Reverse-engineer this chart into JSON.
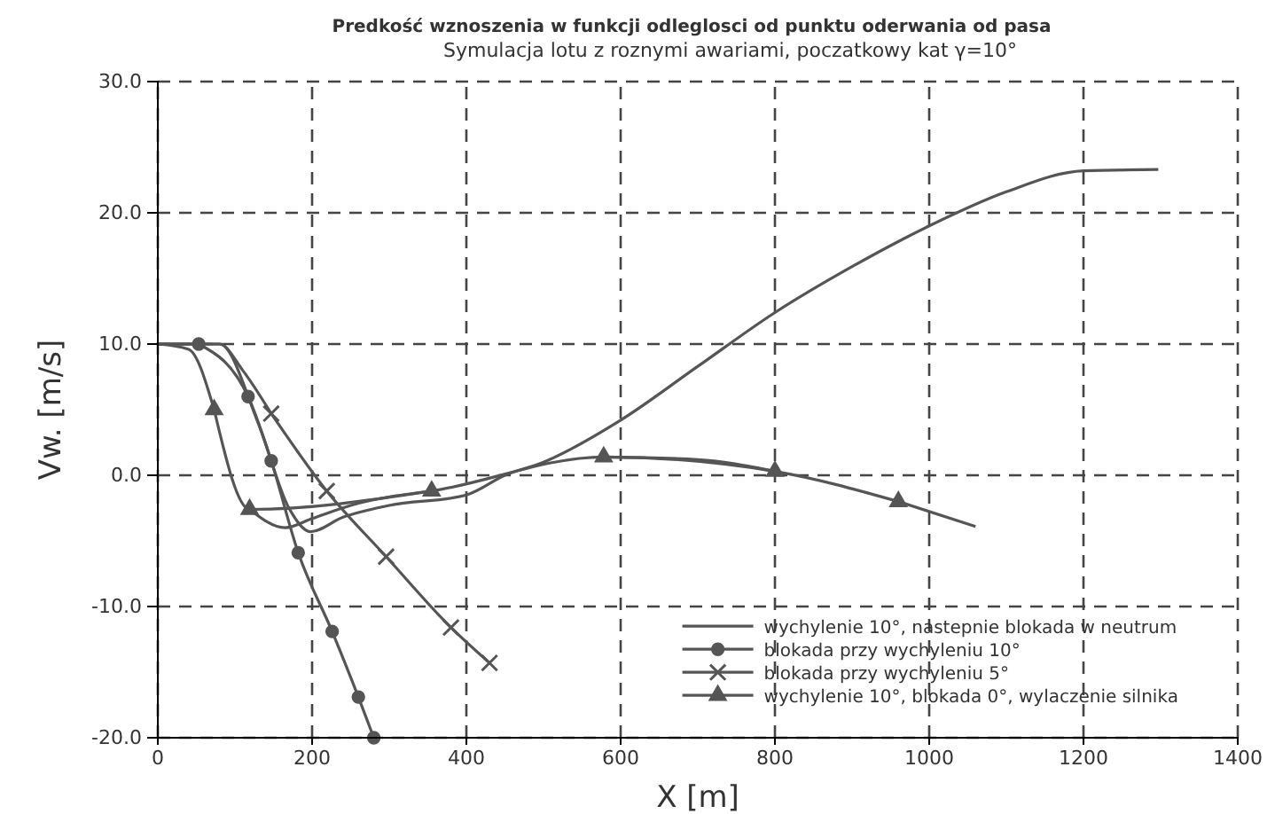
{
  "chart_data": {
    "type": "line",
    "title": "Predkość wznoszenia w funkcji odleglosci od punktu oderwania od pasa",
    "subtitle": "Symulacja lotu z roznymi awariami, poczatkowy kat γ=10°",
    "xlabel": "X [m]",
    "ylabel": "Vw. [m/s]",
    "xlim": [
      0,
      1400
    ],
    "xticks": [
      0,
      200,
      400,
      600,
      800,
      1000,
      1200,
      1400
    ],
    "ylim": [
      -20,
      30
    ],
    "yticks": [
      {
        "value": -20,
        "label": "-20.0"
      },
      {
        "value": -10,
        "label": "-10.0"
      },
      {
        "value": 0,
        "label": "0.0"
      },
      {
        "value": 10,
        "label": "10.0"
      },
      {
        "value": 20,
        "label": "20.0"
      },
      {
        "value": 30,
        "label": "30.0"
      }
    ],
    "grid": true,
    "legend": "bottom right",
    "line_style": "solid",
    "series": [
      {
        "name": "wychylenie 10°, nastepnie blokada w neutrum",
        "color": "#555555",
        "marker": "none",
        "x": [
          0,
          80,
          130,
          170,
          198,
          240,
          300,
          400,
          450,
          500,
          600,
          700,
          800,
          900,
          1000,
          1100,
          1200,
          1297
        ],
        "values": [
          10,
          10,
          4,
          -2.5,
          -4.3,
          -3.2,
          -2.3,
          -1.5,
          0,
          1,
          4.2,
          8.3,
          12.4,
          15.9,
          19,
          21.6,
          23.2,
          23.3
        ]
      },
      {
        "name": "blokada przy wychyleniu 10°",
        "color": "#555555",
        "marker": "circle",
        "x": [
          53,
          117,
          147,
          182,
          226,
          260,
          280
        ],
        "values": [
          10,
          6,
          1.1,
          -5.9,
          -11.9,
          -16.9,
          -20
        ]
      },
      {
        "name": "blokada przy wychyleniu 5°",
        "color": "#555555",
        "marker": "cross",
        "x": [
          147,
          219,
          296,
          380,
          430
        ],
        "values": [
          4.7,
          -1.2,
          -6.2,
          -11.6,
          -14.3
        ]
      },
      {
        "name": "wychylenie 10°, blokada 0°, wylaczenie silnika",
        "color": "#555555",
        "marker": "triangle",
        "x": [
          73,
          119,
          355,
          578,
          800,
          960
        ],
        "values": [
          5,
          -2.6,
          -1.2,
          1.4,
          0.3,
          -2
        ]
      },
      {
        "color": "#555555",
        "marker": "none",
        "x": [
          0,
          53
        ],
        "values": [
          10,
          10
        ]
      },
      {
        "color": "#555555",
        "marker": "none",
        "x": [
          0,
          80,
          110,
          147
        ],
        "values": [
          10,
          10,
          8,
          4.7
        ]
      },
      {
        "color": "#555555",
        "marker": "none",
        "x": [
          0,
          40,
          73
        ],
        "values": [
          10,
          9.6,
          5
        ]
      },
      {
        "color": "#555555",
        "marker": "none",
        "x": [
          119,
          165,
          200,
          250,
          355
        ],
        "values": [
          -2.6,
          -4,
          -3.3,
          -2.3,
          -1.2
        ]
      },
      {
        "color": "#555555",
        "marker": "none",
        "x": [
          578,
          700,
          800
        ],
        "values": [
          1.4,
          1.2,
          0.3
        ]
      },
      {
        "color": "#555555",
        "marker": "none",
        "x": [
          960,
          1060
        ],
        "values": [
          -2,
          -3.9
        ]
      }
    ]
  }
}
